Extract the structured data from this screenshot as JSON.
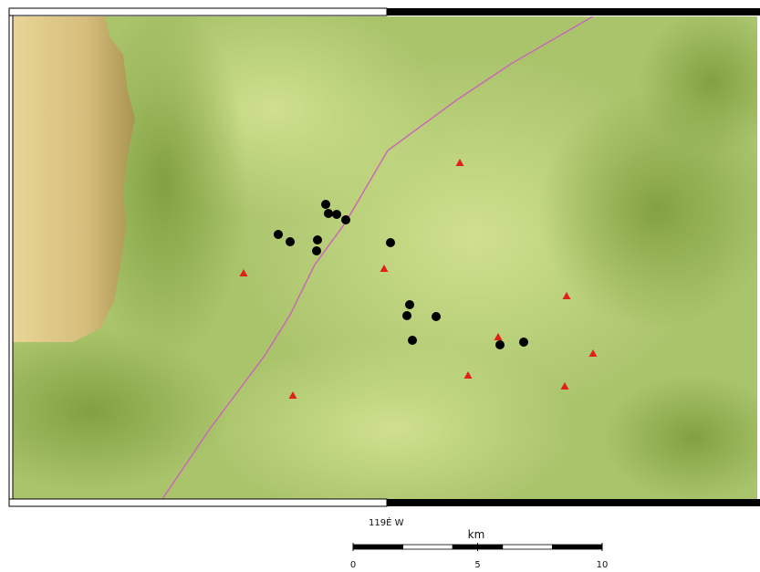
{
  "map": {
    "coordinate_label": "119É W",
    "scale": {
      "unit": "km",
      "range": [
        0,
        10
      ],
      "ticks": [
        0,
        5,
        10
      ],
      "divisions": [
        0,
        2,
        4,
        6,
        8,
        10
      ]
    }
  }
}
